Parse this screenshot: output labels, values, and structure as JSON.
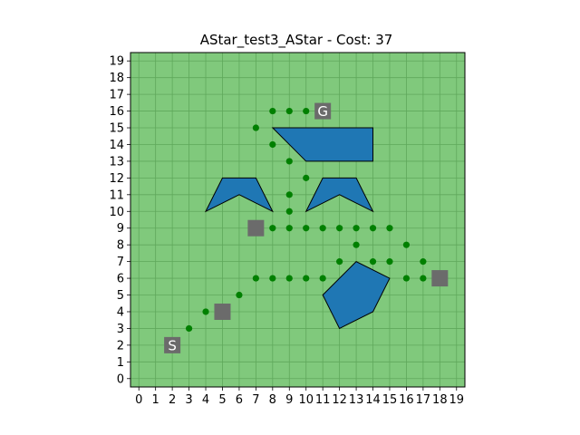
{
  "chart_data": {
    "type": "scatter",
    "title": "AStar_test3_AStar - Cost: 37",
    "xlim": [
      -0.5,
      19.5
    ],
    "ylim": [
      -0.5,
      19.5
    ],
    "xticks": [
      0,
      1,
      2,
      3,
      4,
      5,
      6,
      7,
      8,
      9,
      10,
      11,
      12,
      13,
      14,
      15,
      16,
      17,
      18,
      19
    ],
    "yticks": [
      0,
      1,
      2,
      3,
      4,
      5,
      6,
      7,
      8,
      9,
      10,
      11,
      12,
      13,
      14,
      15,
      16,
      17,
      18,
      19
    ],
    "grid": true,
    "colors": {
      "background": "#80c97c",
      "grid": "#5fa85b",
      "obstacle_fill": "#1f77b4",
      "obstacle_edge": "#000000",
      "path": "#008000",
      "node": "#6b6b6b",
      "node_text": "#ffffff"
    },
    "start": {
      "label": "S",
      "x": 2,
      "y": 2
    },
    "goal": {
      "label": "G",
      "x": 11,
      "y": 16
    },
    "waypoints": [
      {
        "x": 5,
        "y": 4
      },
      {
        "x": 7,
        "y": 9
      },
      {
        "x": 18,
        "y": 6
      }
    ],
    "path_points": [
      [
        3,
        3
      ],
      [
        4,
        4
      ],
      [
        5,
        4
      ],
      [
        6,
        5
      ],
      [
        7,
        6
      ],
      [
        8,
        6
      ],
      [
        9,
        6
      ],
      [
        10,
        6
      ],
      [
        11,
        6
      ],
      [
        12,
        7
      ],
      [
        13,
        8
      ],
      [
        14,
        7
      ],
      [
        15,
        7
      ],
      [
        16,
        8
      ],
      [
        14,
        9
      ],
      [
        15,
        9
      ],
      [
        17,
        7
      ],
      [
        16,
        6
      ],
      [
        17,
        6
      ],
      [
        18,
        6
      ],
      [
        13,
        9
      ],
      [
        12,
        9
      ],
      [
        11,
        9
      ],
      [
        10,
        9
      ],
      [
        9,
        9
      ],
      [
        8,
        9
      ],
      [
        7,
        9
      ],
      [
        9,
        10
      ],
      [
        9,
        11
      ],
      [
        10,
        12
      ],
      [
        9,
        13
      ],
      [
        8,
        14
      ],
      [
        7,
        15
      ],
      [
        8,
        16
      ],
      [
        9,
        16
      ],
      [
        10,
        16
      ]
    ],
    "obstacles": [
      {
        "name": "top-trapezoid",
        "points": [
          [
            8,
            15
          ],
          [
            14,
            15
          ],
          [
            14,
            13
          ],
          [
            10,
            13
          ]
        ]
      },
      {
        "name": "left-chevron",
        "points": [
          [
            4,
            10
          ],
          [
            5,
            12
          ],
          [
            7,
            12
          ],
          [
            8,
            10
          ],
          [
            6,
            11
          ]
        ]
      },
      {
        "name": "right-chevron",
        "points": [
          [
            10,
            10
          ],
          [
            11,
            12
          ],
          [
            13,
            12
          ],
          [
            14,
            10
          ],
          [
            12,
            11
          ]
        ]
      },
      {
        "name": "pentagon",
        "points": [
          [
            11,
            5
          ],
          [
            13,
            7
          ],
          [
            15,
            6
          ],
          [
            14,
            4
          ],
          [
            12,
            3
          ]
        ]
      }
    ]
  }
}
